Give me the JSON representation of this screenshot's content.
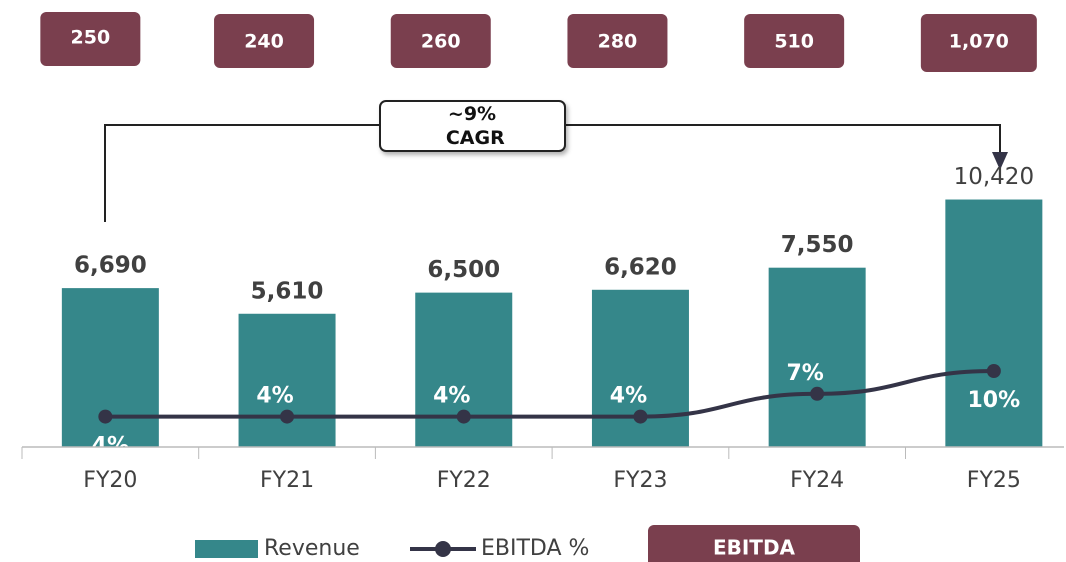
{
  "chart_data": {
    "type": "bar",
    "categories": [
      "FY20",
      "FY21",
      "FY22",
      "FY23",
      "FY24",
      "FY25"
    ],
    "series": [
      {
        "name": "Revenue",
        "color": "#35878a",
        "values": [
          6690,
          5610,
          6500,
          6620,
          7550,
          10420
        ],
        "value_labels": [
          "6,690",
          "5,610",
          "6,500",
          "6,620",
          "7,550",
          "10,420"
        ]
      },
      {
        "name": "EBITDA %",
        "type": "line",
        "axis": "y2",
        "color": "#343447",
        "values": [
          4,
          4,
          4,
          4,
          7,
          10
        ],
        "value_labels": [
          "4%",
          "4%",
          "4%",
          "4%",
          "7%",
          "10%"
        ]
      },
      {
        "name": "EBITDA",
        "type": "box",
        "color": "#7a3f4e",
        "values": [
          250,
          240,
          260,
          280,
          510,
          1070
        ],
        "value_labels": [
          "250",
          "240",
          "260",
          "280",
          "510",
          "1,070"
        ]
      }
    ],
    "annotation": "~9% CAGR",
    "ylim": [
      0,
      12000
    ],
    "y2lim": [
      0,
      37.5
    ],
    "legend": "bottom"
  }
}
